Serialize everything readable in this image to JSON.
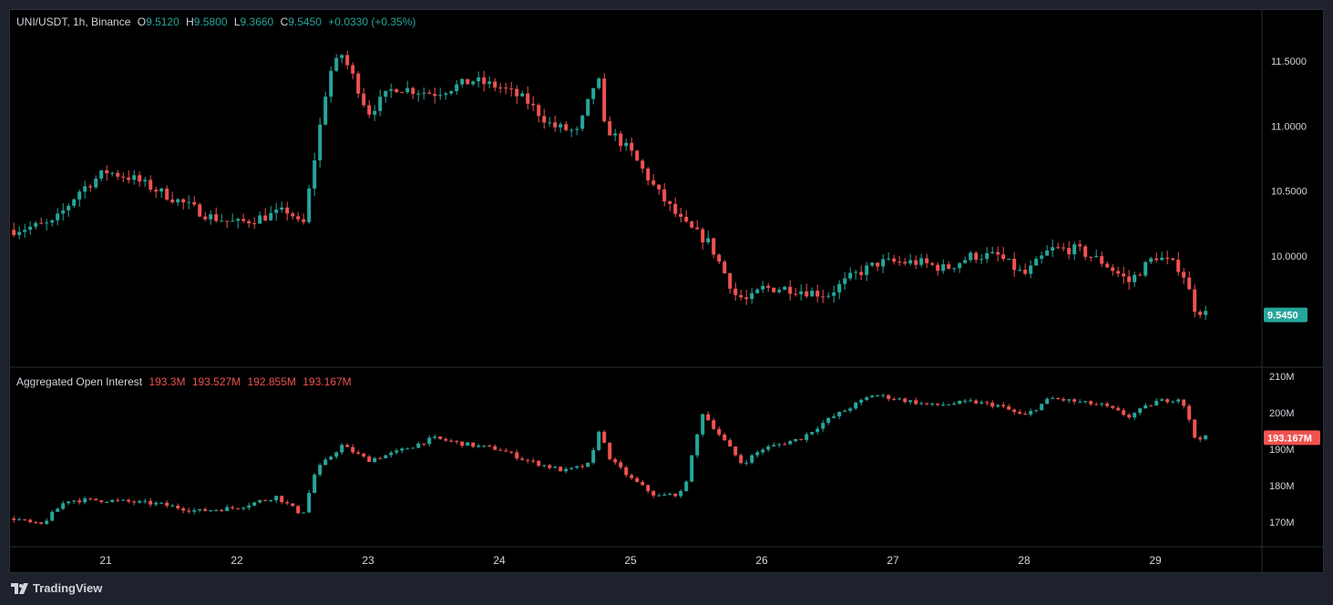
{
  "price_legend": {
    "symbol": "UNI/USDT, 1h, Binance",
    "open_label": "O",
    "open": "9.5120",
    "high_label": "H",
    "high": "9.5800",
    "low_label": "L",
    "low": "9.3660",
    "close_label": "C",
    "close": "9.5450",
    "change": "+0.0330 (+0.35%)"
  },
  "oi_legend": {
    "title": "Aggregated Open Interest",
    "v1": "193.3M",
    "v2": "193.527M",
    "v3": "192.855M",
    "v4": "193.167M"
  },
  "price_axis": {
    "ticks": [
      "11.5000",
      "11.0000",
      "10.5000",
      "10.0000"
    ],
    "values": [
      11.5,
      11.0,
      10.5,
      10.0
    ]
  },
  "price_tag": {
    "label": "9.5450",
    "value": 9.545,
    "color": "#26a69a"
  },
  "oi_axis": {
    "ticks": [
      "210M",
      "200M",
      "190M",
      "180M",
      "170M"
    ],
    "values": [
      210,
      200,
      190,
      180,
      170
    ]
  },
  "oi_tag": {
    "label": "193.167M",
    "value": 193.167,
    "color": "#ef5350"
  },
  "time_axis": {
    "labels": [
      "21",
      "22",
      "23",
      "24",
      "25",
      "26",
      "27",
      "28",
      "29"
    ]
  },
  "colors": {
    "up": "#26a69a",
    "down": "#ef5350",
    "background": "#000000",
    "chrome": "#1e222d",
    "text": "#d1d4dc"
  },
  "brand": {
    "name": "TradingView",
    "icon": "tradingview-logo-icon"
  },
  "chart_data": [
    {
      "type": "candlestick",
      "title": "UNI/USDT, 1h, Binance",
      "ylim": [
        9.2,
        11.9
      ],
      "x_day_labels": [
        "21",
        "22",
        "23",
        "24",
        "25",
        "26",
        "27",
        "28",
        "29"
      ],
      "close_path": [
        [
          20.3,
          10.2
        ],
        [
          20.6,
          10.25
        ],
        [
          20.8,
          10.5
        ],
        [
          21.0,
          10.65
        ],
        [
          21.2,
          10.6
        ],
        [
          21.4,
          10.5
        ],
        [
          21.6,
          10.4
        ],
        [
          21.8,
          10.3
        ],
        [
          22.0,
          10.25
        ],
        [
          22.2,
          10.3
        ],
        [
          22.4,
          10.35
        ],
        [
          22.5,
          10.2
        ],
        [
          22.6,
          10.8
        ],
        [
          22.7,
          11.4
        ],
        [
          22.8,
          11.55
        ],
        [
          22.9,
          11.35
        ],
        [
          23.0,
          11.1
        ],
        [
          23.2,
          11.3
        ],
        [
          23.5,
          11.25
        ],
        [
          23.8,
          11.35
        ],
        [
          24.0,
          11.3
        ],
        [
          24.2,
          11.2
        ],
        [
          24.4,
          11.0
        ],
        [
          24.6,
          10.95
        ],
        [
          24.75,
          11.4
        ],
        [
          24.8,
          11.0
        ],
        [
          25.0,
          10.8
        ],
        [
          25.2,
          10.5
        ],
        [
          25.4,
          10.25
        ],
        [
          25.6,
          10.1
        ],
        [
          25.8,
          9.7
        ],
        [
          25.9,
          9.65
        ],
        [
          26.0,
          9.75
        ],
        [
          26.2,
          9.75
        ],
        [
          26.5,
          9.7
        ],
        [
          26.7,
          9.85
        ],
        [
          26.9,
          9.95
        ],
        [
          27.2,
          9.95
        ],
        [
          27.4,
          9.9
        ],
        [
          27.6,
          10.0
        ],
        [
          27.8,
          10.0
        ],
        [
          28.0,
          9.85
        ],
        [
          28.2,
          10.05
        ],
        [
          28.4,
          10.05
        ],
        [
          28.6,
          9.95
        ],
        [
          28.8,
          9.8
        ],
        [
          29.0,
          10.0
        ],
        [
          29.2,
          9.9
        ],
        [
          29.3,
          9.6
        ],
        [
          29.4,
          9.545
        ]
      ]
    },
    {
      "type": "candlestick",
      "title": "Aggregated Open Interest",
      "ylim": [
        163,
        212
      ],
      "unit": "M",
      "close_path": [
        [
          20.3,
          171
        ],
        [
          20.5,
          169
        ],
        [
          20.7,
          176
        ],
        [
          21.0,
          176
        ],
        [
          21.4,
          175
        ],
        [
          21.7,
          173
        ],
        [
          22.0,
          174
        ],
        [
          22.3,
          177
        ],
        [
          22.5,
          172
        ],
        [
          22.6,
          184
        ],
        [
          22.8,
          191
        ],
        [
          23.0,
          187
        ],
        [
          23.2,
          189
        ],
        [
          23.5,
          193
        ],
        [
          23.8,
          191
        ],
        [
          24.0,
          190
        ],
        [
          24.2,
          187
        ],
        [
          24.5,
          184
        ],
        [
          24.7,
          186
        ],
        [
          24.75,
          196
        ],
        [
          24.85,
          187
        ],
        [
          25.0,
          182
        ],
        [
          25.2,
          177
        ],
        [
          25.4,
          178
        ],
        [
          25.55,
          200
        ],
        [
          25.7,
          193
        ],
        [
          25.85,
          186
        ],
        [
          26.0,
          190
        ],
        [
          26.3,
          193
        ],
        [
          26.5,
          198
        ],
        [
          26.7,
          202
        ],
        [
          26.85,
          205
        ],
        [
          27.0,
          204
        ],
        [
          27.3,
          202
        ],
        [
          27.6,
          203
        ],
        [
          27.8,
          202
        ],
        [
          28.0,
          199
        ],
        [
          28.2,
          204
        ],
        [
          28.4,
          203
        ],
        [
          28.6,
          202
        ],
        [
          28.8,
          199
        ],
        [
          29.0,
          203
        ],
        [
          29.2,
          204
        ],
        [
          29.3,
          193.3
        ],
        [
          29.4,
          193.167
        ]
      ]
    }
  ]
}
